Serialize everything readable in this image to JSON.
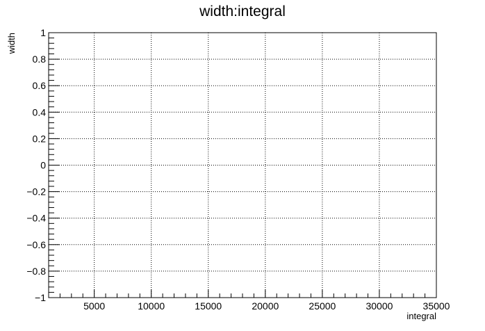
{
  "chart_data": {
    "type": "scatter",
    "title": "width:integral",
    "xlabel": "integral",
    "ylabel": "width",
    "xlim": [
      1000,
      35000
    ],
    "ylim": [
      -1,
      1
    ],
    "x_ticks": [
      5000,
      10000,
      15000,
      20000,
      25000,
      30000,
      35000
    ],
    "x_tick_labels": [
      "5000",
      "10000",
      "15000",
      "20000",
      "25000",
      "30000",
      "35000"
    ],
    "y_ticks": [
      -1,
      -0.8,
      -0.6,
      -0.4,
      -0.2,
      0,
      0.2,
      0.4,
      0.6,
      0.8,
      1
    ],
    "y_tick_labels": [
      "−1",
      "−0.8",
      "−0.6",
      "−0.4",
      "−0.2",
      "0",
      "0.2",
      "0.4",
      "0.6",
      "0.8",
      "1"
    ],
    "grid": true,
    "series": []
  }
}
